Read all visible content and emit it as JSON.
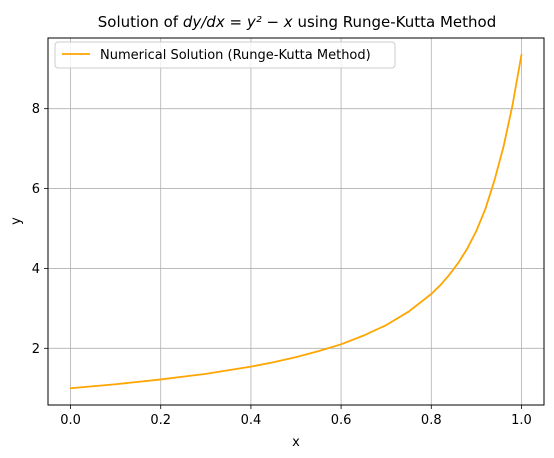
{
  "chart_data": {
    "type": "line",
    "title": {
      "prefix": "Solution of ",
      "equation": "dy/dx = y² − x",
      "suffix": " using Runge-Kutta Method"
    },
    "xlabel": "x",
    "ylabel": "y",
    "xlim": [
      -0.05,
      1.05
    ],
    "ylim": [
      0.58,
      9.77
    ],
    "xticks": [
      0.0,
      0.2,
      0.4,
      0.6,
      0.8,
      1.0
    ],
    "xtick_labels": [
      "0.0",
      "0.2",
      "0.4",
      "0.6",
      "0.8",
      "1.0"
    ],
    "yticks": [
      2,
      4,
      6,
      8
    ],
    "ytick_labels": [
      "2",
      "4",
      "6",
      "8"
    ],
    "grid": true,
    "legend_position": "top-left",
    "series": [
      {
        "name": "Numerical Solution (Runge-Kutta Method)",
        "color": "#ffa500",
        "x": [
          0.0,
          0.05,
          0.1,
          0.15,
          0.2,
          0.25,
          0.3,
          0.35,
          0.4,
          0.45,
          0.5,
          0.55,
          0.6,
          0.65,
          0.7,
          0.75,
          0.8,
          0.82,
          0.84,
          0.86,
          0.88,
          0.9,
          0.92,
          0.94,
          0.96,
          0.98,
          1.0
        ],
        "y": [
          1.0,
          1.05,
          1.1,
          1.16,
          1.22,
          1.29,
          1.36,
          1.45,
          1.54,
          1.65,
          1.78,
          1.93,
          2.1,
          2.32,
          2.58,
          2.92,
          3.36,
          3.58,
          3.84,
          4.14,
          4.5,
          4.94,
          5.49,
          6.2,
          7.04,
          8.08,
          9.35
        ]
      }
    ]
  }
}
